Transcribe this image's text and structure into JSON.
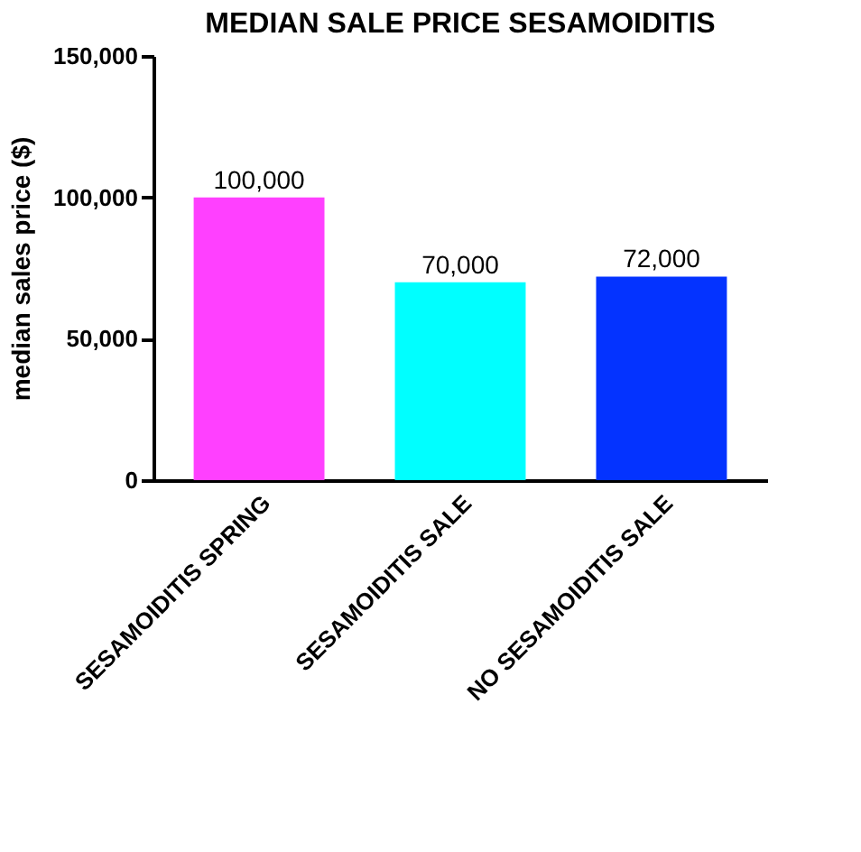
{
  "chart_data": {
    "type": "bar",
    "title": "MEDIAN SALE PRICE SESAMOIDITIS",
    "ylabel": "median sales price ($)",
    "categories": [
      "SESAMOIDITIS SPRING",
      "SESAMOIDITIS SALE",
      "NO SESAMOIDITIS SALE"
    ],
    "values": [
      100000,
      70000,
      72000
    ],
    "colors": [
      "#ff40ff",
      "#00ffff",
      "#0433ff"
    ],
    "ylim": [
      0,
      150000
    ],
    "yticks": [
      {
        "value": 0,
        "label": "0"
      },
      {
        "value": 50000,
        "label": "50,000"
      },
      {
        "value": 100000,
        "label": "100,000"
      },
      {
        "value": 150000,
        "label": "150,000"
      }
    ],
    "value_labels": [
      "100,000",
      "70,000",
      "72,000"
    ],
    "grid": false
  }
}
